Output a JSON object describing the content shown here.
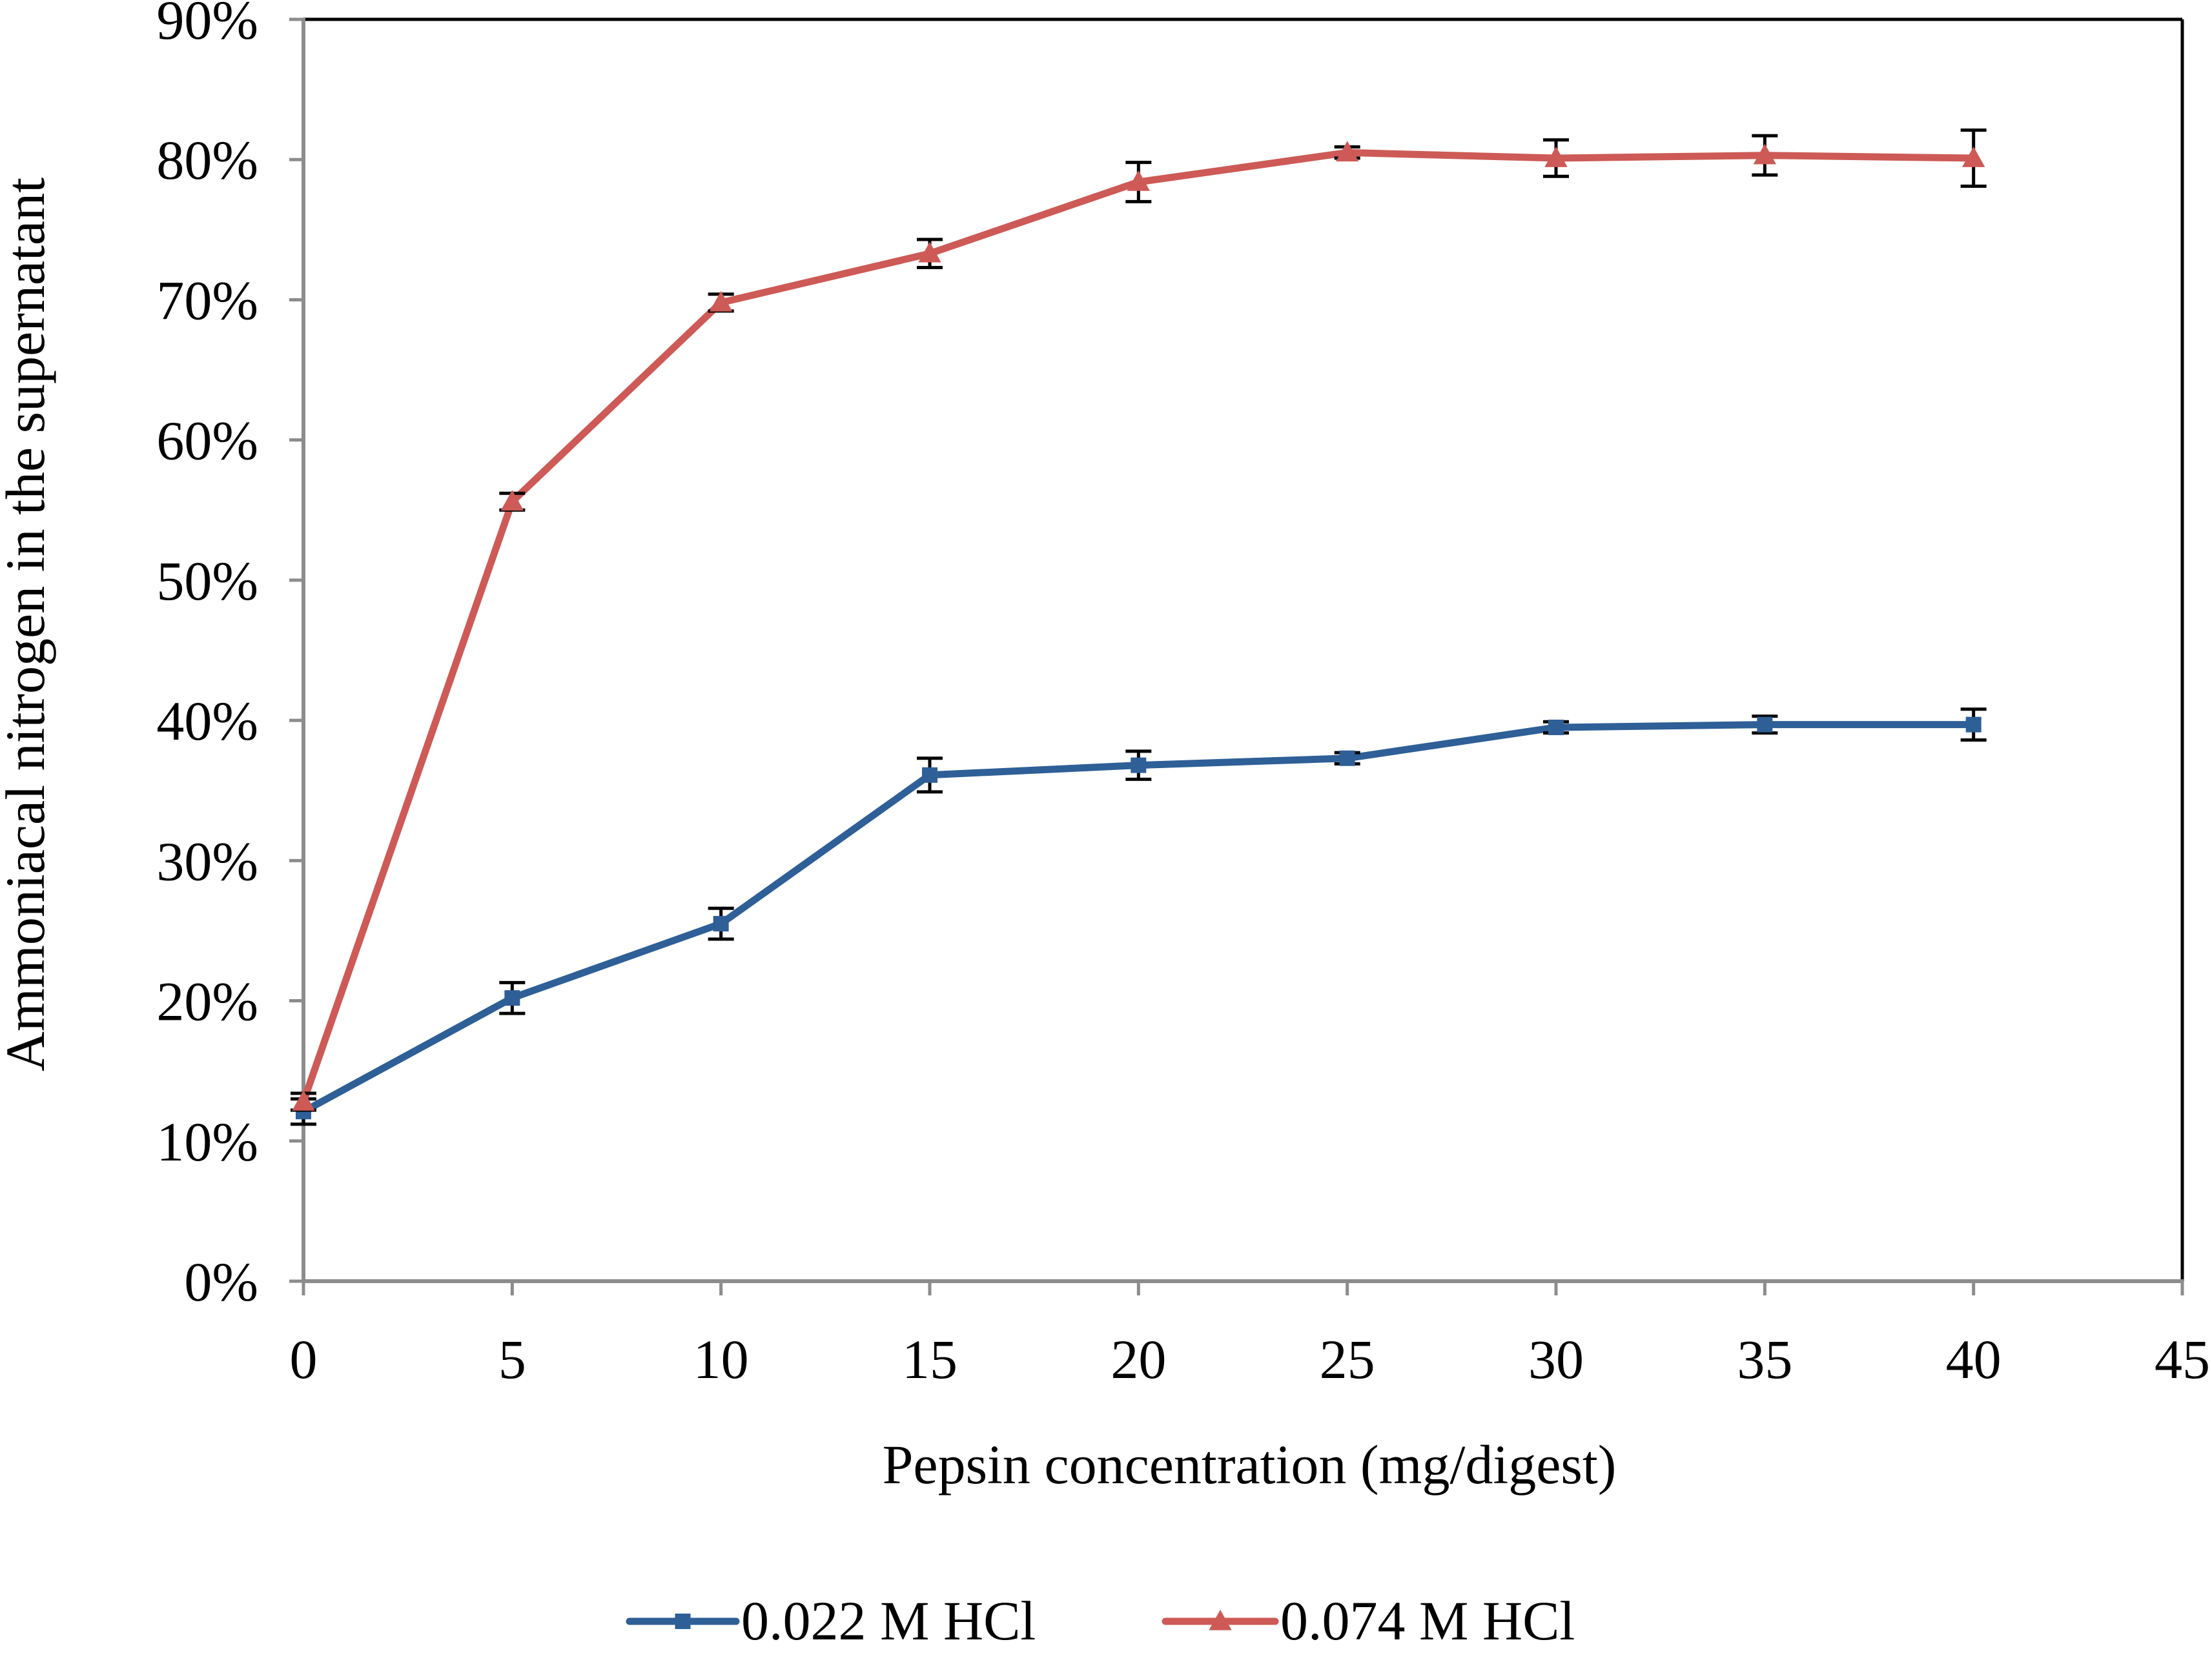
{
  "chart_data": {
    "type": "line",
    "title": "",
    "xlabel": "Pepsin concentration (mg/digest)",
    "ylabel": "Ammoniacal nitrogen in the supernatant",
    "xlim": [
      0,
      45
    ],
    "ylim": [
      0,
      0.9
    ],
    "xticks": [
      0,
      5,
      10,
      15,
      20,
      25,
      30,
      35,
      40,
      45
    ],
    "xtick_labels": [
      "0",
      "5",
      "10",
      "15",
      "20",
      "25",
      "30",
      "35",
      "40",
      "45"
    ],
    "yticks": [
      0,
      0.1,
      0.2,
      0.3,
      0.4,
      0.5,
      0.6,
      0.7,
      0.8,
      0.9
    ],
    "ytick_labels": [
      "0%",
      "10%",
      "20%",
      "30%",
      "40%",
      "50%",
      "60%",
      "70%",
      "80%",
      "90%"
    ],
    "grid": false,
    "legend_position": "bottom",
    "x": [
      0,
      5,
      10,
      15,
      20,
      25,
      30,
      35,
      40
    ],
    "series": [
      {
        "name": "0.022 M HCl",
        "color": "#2E5F97",
        "marker": "square",
        "values": [
          0.121,
          0.202,
          0.255,
          0.361,
          0.368,
          0.373,
          0.395,
          0.397,
          0.397
        ],
        "errors": [
          0.009,
          0.011,
          0.011,
          0.012,
          0.01,
          0.004,
          0.004,
          0.006,
          0.011
        ]
      },
      {
        "name": "0.074 M HCl",
        "color": "#CD5A56",
        "marker": "triangle",
        "values": [
          0.128,
          0.556,
          0.698,
          0.733,
          0.784,
          0.805,
          0.801,
          0.803,
          0.801
        ],
        "errors": [
          0.006,
          0.006,
          0.006,
          0.01,
          0.014,
          0.004,
          0.013,
          0.014,
          0.02
        ]
      }
    ]
  }
}
